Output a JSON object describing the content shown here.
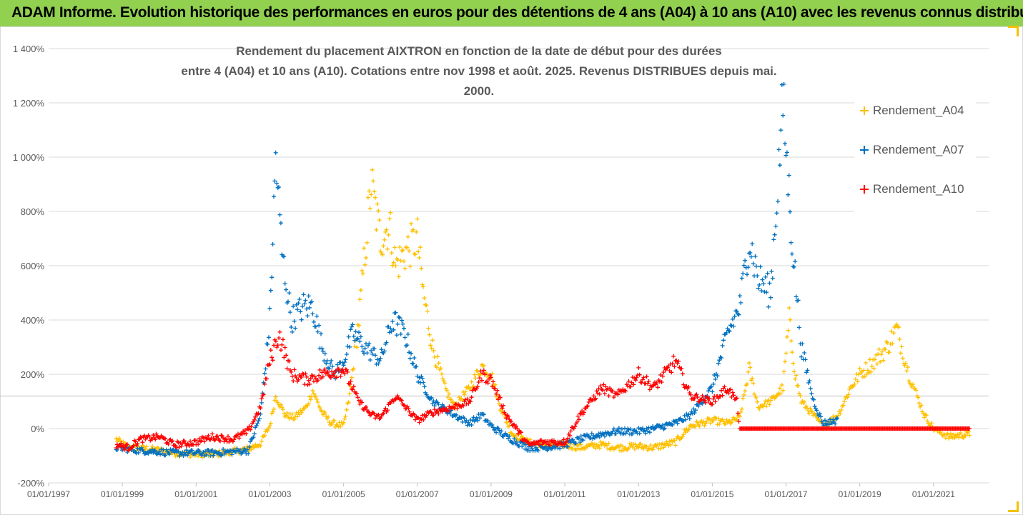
{
  "banner": {
    "text": "ADAM Informe. Evolution historique des performances en euros pour des détentions de 4 ans (A04) à 10 ans (A10) avec les revenus connus distribués"
  },
  "colors": {
    "banner": "#92d050",
    "a04": "#ffc000",
    "a07": "#0070c0",
    "a10": "#ff0000",
    "grid": "#d9d9d9",
    "text": "#595959"
  },
  "chart_data": {
    "type": "scatter",
    "title_lines": [
      "Rendement du placement AIXTRON en fonction de la date de début pour des durées",
      "entre 4 (A04) et 10 ans (A10). Cotations entre nov 1998 et août. 2025. Revenus DISTRIBUES depuis mai. 2000."
    ],
    "xlabel": "",
    "ylabel": "",
    "x_range": [
      "1997-01-01",
      "2022-07-01"
    ],
    "ylim": [
      -200,
      1400
    ],
    "y_ticks": [
      -200,
      0,
      200,
      400,
      600,
      800,
      1000,
      1200,
      1400
    ],
    "y_tick_labels": [
      "-200%",
      "0%",
      "200%",
      "400%",
      "600%",
      "800%",
      "1 000%",
      "1 200%",
      "1 400%"
    ],
    "x_tick_labels": [
      "01/01/1997",
      "01/01/1999",
      "01/01/2001",
      "01/01/2003",
      "01/01/2005",
      "01/01/2007",
      "01/01/2009",
      "01/01/2011",
      "01/01/2013",
      "01/01/2015",
      "01/01/2017",
      "01/01/2019",
      "01/01/2021"
    ],
    "reference_line_y": 120,
    "grid": "horizontal",
    "legend_position": "right",
    "marker": "plus",
    "series": [
      {
        "name": "Rendement_A04",
        "color": "#ffc000",
        "points": [
          [
            "1998-11-01",
            -40
          ],
          [
            "1999-03-01",
            -70
          ],
          [
            "1999-07-01",
            -72
          ],
          [
            "2000-01-01",
            -80
          ],
          [
            "2000-06-01",
            -90
          ],
          [
            "2001-01-01",
            -95
          ],
          [
            "2001-06-01",
            -95
          ],
          [
            "2002-01-01",
            -85
          ],
          [
            "2002-06-01",
            -75
          ],
          [
            "2002-10-01",
            -55
          ],
          [
            "2003-01-01",
            10
          ],
          [
            "2003-03-01",
            120
          ],
          [
            "2003-06-01",
            50
          ],
          [
            "2003-09-01",
            40
          ],
          [
            "2004-01-01",
            80
          ],
          [
            "2004-03-01",
            140
          ],
          [
            "2004-06-01",
            60
          ],
          [
            "2004-09-01",
            20
          ],
          [
            "2005-01-01",
            10
          ],
          [
            "2005-03-01",
            120
          ],
          [
            "2005-06-01",
            400
          ],
          [
            "2005-10-01",
            900
          ],
          [
            "2006-01-01",
            700
          ],
          [
            "2006-04-01",
            750
          ],
          [
            "2006-06-01",
            600
          ],
          [
            "2006-09-01",
            650
          ],
          [
            "2007-01-01",
            700
          ],
          [
            "2007-03-01",
            500
          ],
          [
            "2007-06-01",
            300
          ],
          [
            "2007-10-01",
            150
          ],
          [
            "2008-01-01",
            80
          ],
          [
            "2008-06-01",
            150
          ],
          [
            "2008-10-01",
            230
          ],
          [
            "2009-01-01",
            200
          ],
          [
            "2009-04-01",
            80
          ],
          [
            "2009-08-01",
            -20
          ],
          [
            "2010-01-01",
            -50
          ],
          [
            "2010-06-01",
            -60
          ],
          [
            "2011-01-01",
            -60
          ],
          [
            "2011-06-01",
            -70
          ],
          [
            "2012-01-01",
            -60
          ],
          [
            "2012-06-01",
            -70
          ],
          [
            "2013-01-01",
            -65
          ],
          [
            "2013-06-01",
            -70
          ],
          [
            "2014-01-01",
            -50
          ],
          [
            "2014-06-01",
            10
          ],
          [
            "2015-01-01",
            30
          ],
          [
            "2015-06-01",
            20
          ],
          [
            "2015-10-01",
            40
          ],
          [
            "2016-01-01",
            220
          ],
          [
            "2016-04-01",
            80
          ],
          [
            "2016-08-01",
            100
          ],
          [
            "2016-12-01",
            150
          ],
          [
            "2017-02-01",
            400
          ],
          [
            "2017-04-01",
            200
          ],
          [
            "2017-06-01",
            100
          ],
          [
            "2018-01-01",
            10
          ],
          [
            "2018-06-01",
            50
          ],
          [
            "2018-10-01",
            150
          ],
          [
            "2019-01-01",
            200
          ],
          [
            "2019-06-01",
            250
          ],
          [
            "2019-10-01",
            300
          ],
          [
            "2020-01-01",
            370
          ],
          [
            "2020-05-01",
            200
          ],
          [
            "2020-10-01",
            50
          ],
          [
            "2021-01-01",
            0
          ],
          [
            "2021-06-01",
            -30
          ],
          [
            "2022-01-01",
            -20
          ]
        ]
      },
      {
        "name": "Rendement_A07",
        "color": "#0070c0",
        "points": [
          [
            "1998-11-01",
            -70
          ],
          [
            "1999-06-01",
            -80
          ],
          [
            "2000-01-01",
            -85
          ],
          [
            "2000-06-01",
            -90
          ],
          [
            "2001-01-01",
            -90
          ],
          [
            "2001-06-01",
            -90
          ],
          [
            "2002-01-01",
            -85
          ],
          [
            "2002-06-01",
            -80
          ],
          [
            "2002-10-01",
            50
          ],
          [
            "2003-01-01",
            400
          ],
          [
            "2003-03-01",
            1000
          ],
          [
            "2003-05-01",
            650
          ],
          [
            "2003-08-01",
            400
          ],
          [
            "2003-12-01",
            450
          ],
          [
            "2004-03-01",
            450
          ],
          [
            "2004-06-01",
            300
          ],
          [
            "2004-10-01",
            200
          ],
          [
            "2005-01-01",
            250
          ],
          [
            "2005-04-01",
            350
          ],
          [
            "2005-08-01",
            300
          ],
          [
            "2006-01-01",
            250
          ],
          [
            "2006-05-01",
            400
          ],
          [
            "2006-09-01",
            350
          ],
          [
            "2007-01-01",
            200
          ],
          [
            "2007-06-01",
            100
          ],
          [
            "2008-01-01",
            50
          ],
          [
            "2008-06-01",
            20
          ],
          [
            "2008-10-01",
            50
          ],
          [
            "2009-01-01",
            10
          ],
          [
            "2009-06-01",
            -30
          ],
          [
            "2010-01-01",
            -70
          ],
          [
            "2010-06-01",
            -70
          ],
          [
            "2011-01-01",
            -60
          ],
          [
            "2011-06-01",
            -40
          ],
          [
            "2012-01-01",
            -20
          ],
          [
            "2012-06-01",
            -10
          ],
          [
            "2013-01-01",
            -10
          ],
          [
            "2013-06-01",
            0
          ],
          [
            "2014-01-01",
            20
          ],
          [
            "2014-06-01",
            50
          ],
          [
            "2015-01-01",
            150
          ],
          [
            "2015-06-01",
            350
          ],
          [
            "2015-10-01",
            450
          ],
          [
            "2016-01-01",
            700
          ],
          [
            "2016-04-01",
            550
          ],
          [
            "2016-08-01",
            500
          ],
          [
            "2016-12-01",
            1200
          ],
          [
            "2017-03-01",
            700
          ],
          [
            "2017-06-01",
            300
          ],
          [
            "2017-10-01",
            100
          ],
          [
            "2018-01-01",
            20
          ],
          [
            "2018-06-01",
            30
          ]
        ]
      },
      {
        "name": "Rendement_A10",
        "color": "#ff0000",
        "points": [
          [
            "1998-11-01",
            -60
          ],
          [
            "1999-03-01",
            -70
          ],
          [
            "1999-07-01",
            -40
          ],
          [
            "2000-01-01",
            -30
          ],
          [
            "2000-06-01",
            -60
          ],
          [
            "2001-01-01",
            -50
          ],
          [
            "2001-06-01",
            -30
          ],
          [
            "2002-01-01",
            -40
          ],
          [
            "2002-06-01",
            -10
          ],
          [
            "2002-10-01",
            80
          ],
          [
            "2003-01-01",
            250
          ],
          [
            "2003-04-01",
            350
          ],
          [
            "2003-08-01",
            200
          ],
          [
            "2004-01-01",
            180
          ],
          [
            "2004-06-01",
            200
          ],
          [
            "2005-01-01",
            220
          ],
          [
            "2005-06-01",
            100
          ],
          [
            "2005-10-01",
            50
          ],
          [
            "2006-01-01",
            40
          ],
          [
            "2006-06-01",
            120
          ],
          [
            "2007-01-01",
            30
          ],
          [
            "2007-06-01",
            60
          ],
          [
            "2008-01-01",
            80
          ],
          [
            "2008-06-01",
            100
          ],
          [
            "2008-10-01",
            200
          ],
          [
            "2009-01-01",
            180
          ],
          [
            "2009-06-01",
            50
          ],
          [
            "2010-01-01",
            -60
          ],
          [
            "2010-06-01",
            -50
          ],
          [
            "2011-01-01",
            -50
          ],
          [
            "2011-06-01",
            50
          ],
          [
            "2012-01-01",
            150
          ],
          [
            "2012-06-01",
            120
          ],
          [
            "2013-01-01",
            200
          ],
          [
            "2013-06-01",
            150
          ],
          [
            "2014-01-01",
            250
          ],
          [
            "2014-06-01",
            120
          ],
          [
            "2015-01-01",
            100
          ],
          [
            "2015-06-01",
            150
          ],
          [
            "2015-09-01",
            100
          ],
          [
            "2015-10-01",
            0
          ],
          [
            "2016-06-01",
            0
          ],
          [
            "2017-01-01",
            0
          ],
          [
            "2018-01-01",
            0
          ],
          [
            "2019-01-01",
            0
          ],
          [
            "2020-01-01",
            0
          ],
          [
            "2021-01-01",
            0
          ],
          [
            "2022-01-01",
            0
          ]
        ]
      }
    ]
  }
}
